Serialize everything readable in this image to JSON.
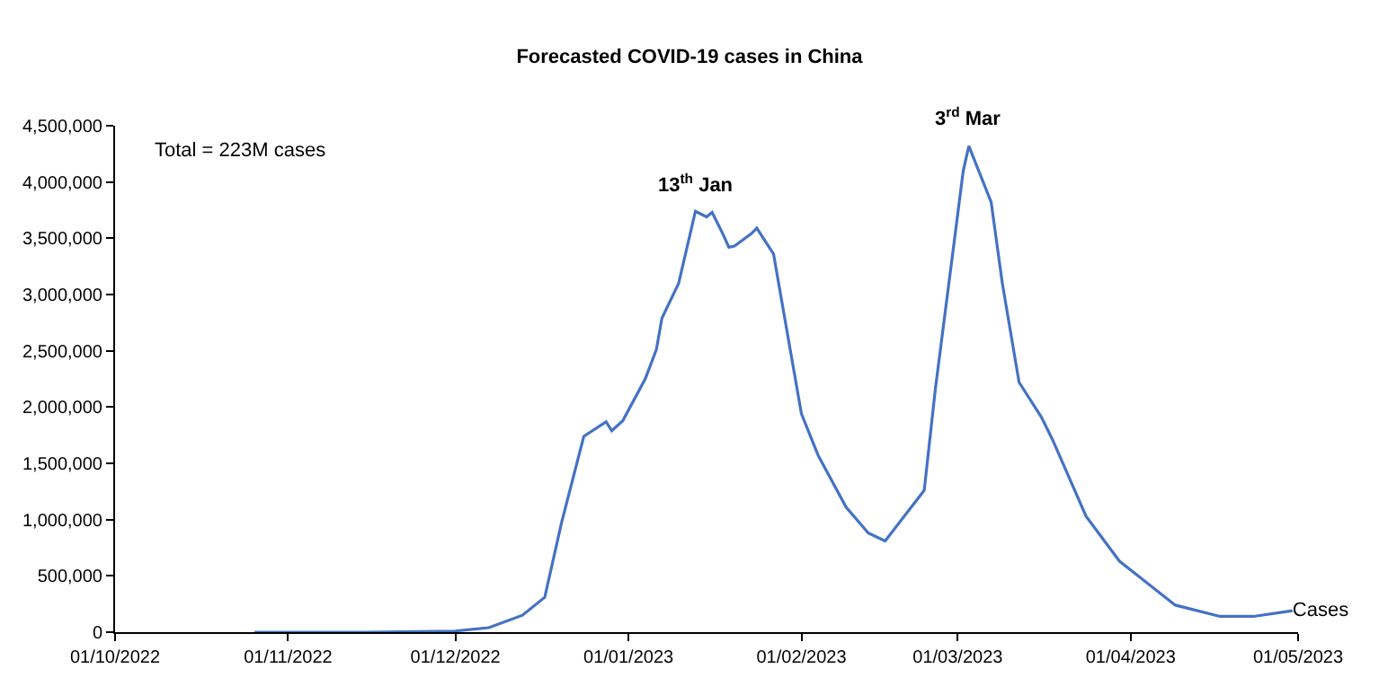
{
  "chart_data": {
    "type": "line",
    "title": "Forecasted COVID-19 cases in China",
    "x": [
      "2022-10-26",
      "2022-11-15",
      "2022-12-01",
      "2022-12-07",
      "2022-12-13",
      "2022-12-17",
      "2022-12-20",
      "2022-12-24",
      "2022-12-28",
      "2022-12-29",
      "2022-12-31",
      "2023-01-04",
      "2023-01-06",
      "2023-01-07",
      "2023-01-10",
      "2023-01-13",
      "2023-01-15",
      "2023-01-16",
      "2023-01-18",
      "2023-01-19",
      "2023-01-20",
      "2023-01-23",
      "2023-01-24",
      "2023-01-27",
      "2023-01-29",
      "2023-02-01",
      "2023-02-04",
      "2023-02-09",
      "2023-02-13",
      "2023-02-16",
      "2023-02-23",
      "2023-02-25",
      "2023-03-02",
      "2023-03-03",
      "2023-03-07",
      "2023-03-09",
      "2023-03-12",
      "2023-03-16",
      "2023-03-18",
      "2023-03-24",
      "2023-03-30",
      "2023-04-09",
      "2023-04-17",
      "2023-04-23",
      "2023-04-30"
    ],
    "series": [
      {
        "name": "Cases",
        "color": "#4472c4",
        "values": [
          0,
          0,
          10000,
          40000,
          150000,
          310000,
          970000,
          1740000,
          1870000,
          1790000,
          1880000,
          2250000,
          2510000,
          2790000,
          3100000,
          3740000,
          3690000,
          3730000,
          3530000,
          3420000,
          3430000,
          3540000,
          3590000,
          3360000,
          2790000,
          1940000,
          1570000,
          1110000,
          880000,
          810000,
          1260000,
          2160000,
          4100000,
          4320000,
          3820000,
          3100000,
          2220000,
          1910000,
          1710000,
          1030000,
          630000,
          240000,
          140000,
          140000,
          190000
        ]
      }
    ],
    "xlim": [
      "2022-10-01",
      "2023-05-01"
    ],
    "xticks": [
      {
        "value": "2022-10-01",
        "label": "01/10/2022"
      },
      {
        "value": "2022-11-01",
        "label": "01/11/2022"
      },
      {
        "value": "2022-12-01",
        "label": "01/12/2022"
      },
      {
        "value": "2023-01-01",
        "label": "01/01/2023"
      },
      {
        "value": "2023-02-01",
        "label": "01/02/2023"
      },
      {
        "value": "2023-03-01",
        "label": "01/03/2023"
      },
      {
        "value": "2023-04-01",
        "label": "01/04/2023"
      },
      {
        "value": "2023-05-01",
        "label": "01/05/2023"
      }
    ],
    "ylim": [
      0,
      4500000
    ],
    "yticks": [
      0,
      {
        "value": 500000,
        "label": "500,000"
      },
      {
        "value": 1000000,
        "label": "1,000,000"
      },
      {
        "value": 1500000,
        "label": "1,500,000"
      },
      {
        "value": 2000000,
        "label": "2,000,000"
      },
      {
        "value": 2500000,
        "label": "2,500,000"
      },
      {
        "value": 3000000,
        "label": "3,000,000"
      },
      {
        "value": 3500000,
        "label": "3,500,000"
      },
      {
        "value": 4000000,
        "label": "4,000,000"
      },
      {
        "value": 4500000,
        "label": "4,500,000"
      }
    ],
    "annotations": [
      "Total = 223M cases",
      {
        "text": "13$^{th}$ Jan",
        "x": "2023-01-13",
        "y": 3740000
      },
      {
        "text": "3$^{rd}$ Mar",
        "x": "2023-03-03",
        "y": 4320000
      }
    ],
    "legend": false,
    "marker": "none",
    "line_style": "solid"
  }
}
